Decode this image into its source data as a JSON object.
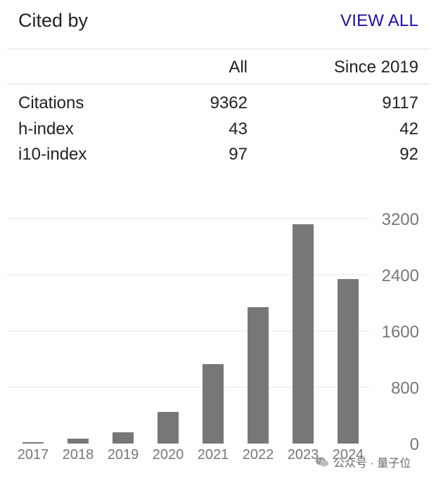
{
  "header": {
    "title": "Cited by",
    "view_all": "VIEW ALL"
  },
  "table": {
    "columns": [
      "All",
      "Since 2019"
    ],
    "rows": [
      {
        "label": "Citations",
        "all": "9362",
        "since": "9117"
      },
      {
        "label": "h-index",
        "all": "43",
        "since": "42"
      },
      {
        "label": "i10-index",
        "all": "97",
        "since": "92"
      }
    ]
  },
  "chart_data": {
    "type": "bar",
    "categories": [
      "2017",
      "2018",
      "2019",
      "2020",
      "2021",
      "2022",
      "2023",
      "2024"
    ],
    "values": [
      20,
      70,
      160,
      450,
      1130,
      1940,
      3120,
      2340
    ],
    "ylim": [
      0,
      3200
    ],
    "yticks": [
      "0",
      "800",
      "1600",
      "2400",
      "3200"
    ],
    "grid": true,
    "bar_color": "#777777"
  },
  "watermark": {
    "text": "公众号 · 量子位"
  }
}
